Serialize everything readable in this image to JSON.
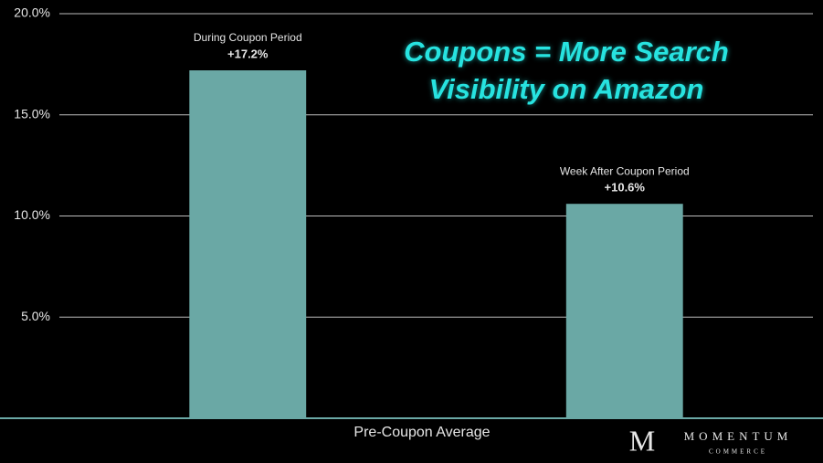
{
  "chart_data": {
    "type": "bar",
    "title": "Coupons = More Search Visibility on Amazon",
    "x_label": "Pre-Coupon Average",
    "categories": [
      "During Coupon Period",
      "Week After Coupon Period"
    ],
    "values": [
      17.2,
      10.6
    ],
    "value_labels": [
      "+17.2%",
      "+10.6%"
    ],
    "color": "#6aa8a5",
    "ylim": [
      0,
      20
    ],
    "yticks": [
      {
        "value": 5,
        "label": "5.0%"
      },
      {
        "value": 10,
        "label": "10.0%"
      },
      {
        "value": 15,
        "label": "15.0%"
      },
      {
        "value": 20,
        "label": "20.0%"
      }
    ],
    "grid": true
  },
  "logo": {
    "mark": "M",
    "name": "MOMENTUM",
    "tagline": "COMMERCE"
  }
}
